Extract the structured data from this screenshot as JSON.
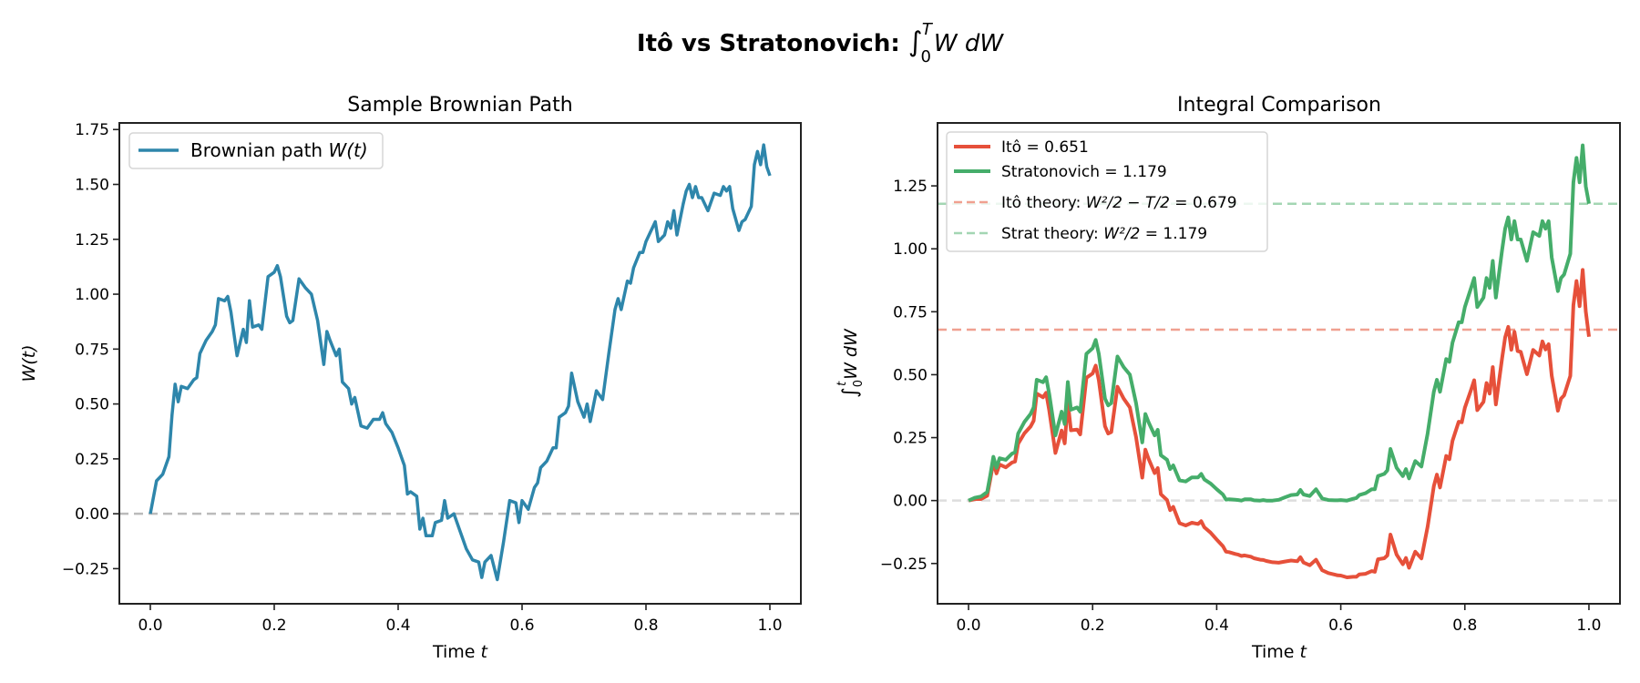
{
  "figure": {
    "suptitle": "Itô vs Stratonovich: ",
    "suptitle_math": "∫",
    "suptitle_upper": "T",
    "suptitle_lower": "0",
    "suptitle_integrand": "W dW"
  },
  "colors": {
    "brownian": "#2e86ab",
    "ito": "#e6503a",
    "strat": "#45ad6a",
    "ito_theory": "#f0a090",
    "strat_theory": "#a3d6b3",
    "zero_line": "#bbbbbb",
    "zero_line_right": "#dddddd"
  },
  "chart_data": [
    {
      "type": "line",
      "title": "Sample Brownian Path",
      "xlabel": "Time t",
      "xlabel_main": "Time ",
      "xlabel_var": "t",
      "ylabel": "W(t)",
      "xlim": [
        -0.05,
        1.05
      ],
      "ylim": [
        -0.41,
        1.78
      ],
      "xticks": [
        0.0,
        0.2,
        0.4,
        0.6,
        0.8,
        1.0
      ],
      "xtick_labels": [
        "0.0",
        "0.2",
        "0.4",
        "0.6",
        "0.8",
        "1.0"
      ],
      "yticks": [
        -0.25,
        0.0,
        0.25,
        0.5,
        0.75,
        1.0,
        1.25,
        1.5,
        1.75
      ],
      "ytick_labels": [
        "−0.25",
        "0.00",
        "0.25",
        "0.50",
        "0.75",
        "1.00",
        "1.25",
        "1.50",
        "1.75"
      ],
      "legend_placement": "upper-left",
      "hlines": [
        {
          "y": 0,
          "style": "dashed",
          "color_key": "zero_line"
        }
      ],
      "series": [
        {
          "name": "Brownian path W(t)",
          "legend_label": "Brownian path ",
          "legend_math": "W(t)",
          "color_key": "brownian",
          "x": [
            0,
            0.01,
            0.02,
            0.03,
            0.035,
            0.04,
            0.045,
            0.05,
            0.06,
            0.07,
            0.075,
            0.08,
            0.09,
            0.1,
            0.105,
            0.11,
            0.12,
            0.125,
            0.13,
            0.14,
            0.15,
            0.155,
            0.16,
            0.165,
            0.175,
            0.18,
            0.19,
            0.2,
            0.205,
            0.21,
            0.22,
            0.225,
            0.23,
            0.24,
            0.25,
            0.26,
            0.27,
            0.28,
            0.285,
            0.29,
            0.3,
            0.305,
            0.31,
            0.32,
            0.325,
            0.33,
            0.34,
            0.35,
            0.36,
            0.37,
            0.375,
            0.38,
            0.39,
            0.4,
            0.41,
            0.415,
            0.42,
            0.43,
            0.435,
            0.44,
            0.445,
            0.455,
            0.46,
            0.47,
            0.475,
            0.48,
            0.49,
            0.5,
            0.51,
            0.52,
            0.53,
            0.535,
            0.54,
            0.55,
            0.56,
            0.57,
            0.58,
            0.59,
            0.595,
            0.6,
            0.61,
            0.62,
            0.625,
            0.63,
            0.64,
            0.65,
            0.655,
            0.66,
            0.67,
            0.675,
            0.68,
            0.69,
            0.7,
            0.705,
            0.71,
            0.72,
            0.73,
            0.74,
            0.75,
            0.755,
            0.76,
            0.77,
            0.775,
            0.78,
            0.79,
            0.795,
            0.8,
            0.81,
            0.815,
            0.82,
            0.83,
            0.835,
            0.84,
            0.845,
            0.85,
            0.86,
            0.865,
            0.87,
            0.875,
            0.88,
            0.885,
            0.89,
            0.9,
            0.91,
            0.92,
            0.925,
            0.93,
            0.935,
            0.94,
            0.95,
            0.955,
            0.96,
            0.97,
            0.975,
            0.98,
            0.985,
            0.99,
            0.995,
            1.0
          ],
          "y": [
            0,
            0.15,
            0.18,
            0.26,
            0.45,
            0.59,
            0.51,
            0.58,
            0.57,
            0.61,
            0.62,
            0.73,
            0.79,
            0.83,
            0.86,
            0.98,
            0.97,
            0.99,
            0.92,
            0.72,
            0.84,
            0.78,
            0.97,
            0.85,
            0.86,
            0.84,
            1.08,
            1.1,
            1.13,
            1.08,
            0.9,
            0.87,
            0.88,
            1.07,
            1.03,
            1.0,
            0.88,
            0.68,
            0.83,
            0.79,
            0.72,
            0.75,
            0.6,
            0.57,
            0.5,
            0.53,
            0.4,
            0.39,
            0.43,
            0.43,
            0.46,
            0.41,
            0.37,
            0.3,
            0.22,
            0.09,
            0.1,
            0.08,
            -0.07,
            -0.02,
            -0.1,
            -0.1,
            -0.04,
            -0.03,
            0.06,
            -0.02,
            0,
            -0.08,
            -0.16,
            -0.21,
            -0.22,
            -0.29,
            -0.22,
            -0.19,
            -0.3,
            -0.13,
            0.06,
            0.05,
            -0.04,
            0.06,
            0.02,
            0.12,
            0.14,
            0.21,
            0.24,
            0.3,
            0.3,
            0.44,
            0.46,
            0.49,
            0.64,
            0.51,
            0.44,
            0.5,
            0.42,
            0.56,
            0.52,
            0.73,
            0.93,
            0.98,
            0.93,
            1.06,
            1.05,
            1.12,
            1.19,
            1.19,
            1.24,
            1.3,
            1.33,
            1.24,
            1.27,
            1.33,
            1.3,
            1.38,
            1.27,
            1.41,
            1.47,
            1.5,
            1.44,
            1.49,
            1.44,
            1.44,
            1.38,
            1.46,
            1.45,
            1.49,
            1.47,
            1.49,
            1.39,
            1.29,
            1.33,
            1.34,
            1.4,
            1.59,
            1.65,
            1.59,
            1.68,
            1.58,
            1.54
          ]
        }
      ]
    },
    {
      "type": "line",
      "title": "Integral Comparison",
      "xlabel": "Time t",
      "xlabel_main": "Time ",
      "xlabel_var": "t",
      "ylabel": "∫₀ᵗ W dW",
      "ylabel_int": "∫",
      "ylabel_upper": "t",
      "ylabel_lower": "0",
      "ylabel_integrand": "W dW",
      "xlim": [
        -0.05,
        1.05
      ],
      "ylim": [
        -0.41,
        1.5
      ],
      "xticks": [
        0.0,
        0.2,
        0.4,
        0.6,
        0.8,
        1.0
      ],
      "xtick_labels": [
        "0.0",
        "0.2",
        "0.4",
        "0.6",
        "0.8",
        "1.0"
      ],
      "yticks": [
        -0.25,
        0.0,
        0.25,
        0.5,
        0.75,
        1.0,
        1.25
      ],
      "ytick_labels": [
        "−0.25",
        "0.00",
        "0.25",
        "0.50",
        "0.75",
        "1.00",
        "1.25"
      ],
      "legend_placement": "upper-left",
      "hlines": [
        {
          "y": 0,
          "style": "dashed",
          "color_key": "zero_line_right"
        },
        {
          "y": 0.679,
          "style": "dashed",
          "color_key": "ito_theory"
        },
        {
          "y": 1.179,
          "style": "dashed",
          "color_key": "strat_theory"
        }
      ],
      "legend": [
        {
          "label": "Itô = 0.651",
          "style": "solid",
          "color_key": "ito"
        },
        {
          "label": "Stratonovich = 1.179",
          "style": "solid",
          "color_key": "strat"
        },
        {
          "label_pre": "Itô theory: ",
          "label_math": "W²/2 − T/2",
          "label_post": " = 0.679",
          "style": "dashed",
          "color_key": "ito_theory"
        },
        {
          "label_pre": "Strat theory: ",
          "label_math": "W²/2",
          "label_post": " = 1.179",
          "style": "dashed",
          "color_key": "strat_theory"
        }
      ],
      "series": [
        {
          "name": "Itô = 0.651",
          "color_key": "ito",
          "x": [
            0,
            0.01,
            0.02,
            0.03,
            0.035,
            0.04,
            0.045,
            0.05,
            0.06,
            0.07,
            0.075,
            0.08,
            0.09,
            0.1,
            0.105,
            0.11,
            0.12,
            0.125,
            0.13,
            0.14,
            0.15,
            0.155,
            0.16,
            0.165,
            0.175,
            0.18,
            0.19,
            0.2,
            0.205,
            0.21,
            0.22,
            0.225,
            0.23,
            0.24,
            0.25,
            0.26,
            0.27,
            0.28,
            0.285,
            0.29,
            0.3,
            0.305,
            0.31,
            0.32,
            0.325,
            0.33,
            0.34,
            0.35,
            0.36,
            0.37,
            0.375,
            0.38,
            0.39,
            0.4,
            0.41,
            0.415,
            0.42,
            0.43,
            0.435,
            0.44,
            0.445,
            0.455,
            0.46,
            0.47,
            0.475,
            0.48,
            0.49,
            0.5,
            0.51,
            0.52,
            0.53,
            0.535,
            0.54,
            0.55,
            0.56,
            0.57,
            0.58,
            0.59,
            0.595,
            0.6,
            0.61,
            0.62,
            0.625,
            0.63,
            0.64,
            0.65,
            0.655,
            0.66,
            0.67,
            0.675,
            0.68,
            0.69,
            0.7,
            0.705,
            0.71,
            0.72,
            0.73,
            0.74,
            0.75,
            0.755,
            0.76,
            0.77,
            0.775,
            0.78,
            0.79,
            0.795,
            0.8,
            0.81,
            0.815,
            0.82,
            0.83,
            0.835,
            0.84,
            0.845,
            0.85,
            0.86,
            0.865,
            0.87,
            0.875,
            0.88,
            0.885,
            0.89,
            0.9,
            0.91,
            0.92,
            0.925,
            0.93,
            0.935,
            0.94,
            0.95,
            0.955,
            0.96,
            0.97,
            0.975,
            0.98,
            0.985,
            0.99,
            0.995,
            1.0
          ],
          "y": [
            0,
            0.006,
            0.006,
            0.019,
            0.084,
            0.154,
            0.108,
            0.143,
            0.132,
            0.151,
            0.155,
            0.226,
            0.267,
            0.294,
            0.317,
            0.425,
            0.41,
            0.428,
            0.358,
            0.189,
            0.278,
            0.227,
            0.391,
            0.279,
            0.282,
            0.263,
            0.488,
            0.505,
            0.536,
            0.478,
            0.295,
            0.266,
            0.272,
            0.452,
            0.405,
            0.37,
            0.252,
            0.091,
            0.202,
            0.167,
            0.109,
            0.129,
            0.025,
            0.002,
            -0.038,
            -0.025,
            -0.09,
            -0.099,
            -0.088,
            -0.093,
            -0.082,
            -0.106,
            -0.127,
            -0.155,
            -0.181,
            -0.203,
            -0.205,
            -0.212,
            -0.215,
            -0.22,
            -0.218,
            -0.223,
            -0.229,
            -0.235,
            -0.236,
            -0.24,
            -0.245,
            -0.247,
            -0.242,
            -0.238,
            -0.241,
            -0.225,
            -0.246,
            -0.257,
            -0.235,
            -0.277,
            -0.288,
            -0.294,
            -0.297,
            -0.298,
            -0.305,
            -0.303,
            -0.303,
            -0.293,
            -0.291,
            -0.28,
            -0.283,
            -0.233,
            -0.229,
            -0.218,
            -0.135,
            -0.215,
            -0.253,
            -0.228,
            -0.267,
            -0.203,
            -0.23,
            -0.104,
            0.057,
            0.103,
            0.052,
            0.177,
            0.164,
            0.237,
            0.313,
            0.311,
            0.369,
            0.44,
            0.478,
            0.359,
            0.392,
            0.467,
            0.425,
            0.53,
            0.382,
            0.564,
            0.648,
            0.69,
            0.599,
            0.67,
            0.594,
            0.591,
            0.502,
            0.598,
            0.576,
            0.632,
            0.6,
            0.621,
            0.496,
            0.357,
            0.405,
            0.418,
            0.495,
            0.776,
            0.872,
            0.772,
            0.916,
            0.751,
            0.651
          ]
        },
        {
          "name": "Stratonovich = 1.179",
          "color_key": "strat",
          "x": [
            0,
            0.01,
            0.02,
            0.03,
            0.035,
            0.04,
            0.045,
            0.05,
            0.06,
            0.07,
            0.075,
            0.08,
            0.09,
            0.1,
            0.105,
            0.11,
            0.12,
            0.125,
            0.13,
            0.14,
            0.15,
            0.155,
            0.16,
            0.165,
            0.175,
            0.18,
            0.19,
            0.2,
            0.205,
            0.21,
            0.22,
            0.225,
            0.23,
            0.24,
            0.25,
            0.26,
            0.27,
            0.28,
            0.285,
            0.29,
            0.3,
            0.305,
            0.31,
            0.32,
            0.325,
            0.33,
            0.34,
            0.35,
            0.36,
            0.37,
            0.375,
            0.38,
            0.39,
            0.4,
            0.41,
            0.415,
            0.42,
            0.43,
            0.435,
            0.44,
            0.445,
            0.455,
            0.46,
            0.47,
            0.475,
            0.48,
            0.49,
            0.5,
            0.51,
            0.52,
            0.53,
            0.535,
            0.54,
            0.55,
            0.56,
            0.57,
            0.58,
            0.59,
            0.595,
            0.6,
            0.61,
            0.62,
            0.625,
            0.63,
            0.64,
            0.65,
            0.655,
            0.66,
            0.67,
            0.675,
            0.68,
            0.69,
            0.7,
            0.705,
            0.71,
            0.72,
            0.73,
            0.74,
            0.75,
            0.755,
            0.76,
            0.77,
            0.775,
            0.78,
            0.79,
            0.795,
            0.8,
            0.81,
            0.815,
            0.82,
            0.83,
            0.835,
            0.84,
            0.845,
            0.85,
            0.86,
            0.865,
            0.87,
            0.875,
            0.88,
            0.885,
            0.89,
            0.9,
            0.91,
            0.92,
            0.925,
            0.93,
            0.935,
            0.94,
            0.95,
            0.955,
            0.96,
            0.97,
            0.975,
            0.98,
            0.985,
            0.99,
            0.995,
            1.0
          ],
          "y": [
            0,
            0.011,
            0.016,
            0.034,
            0.101,
            0.174,
            0.13,
            0.168,
            0.162,
            0.186,
            0.192,
            0.266,
            0.312,
            0.344,
            0.37,
            0.48,
            0.47,
            0.49,
            0.423,
            0.259,
            0.353,
            0.304,
            0.471,
            0.361,
            0.37,
            0.353,
            0.583,
            0.605,
            0.638,
            0.583,
            0.405,
            0.378,
            0.387,
            0.572,
            0.53,
            0.5,
            0.387,
            0.231,
            0.344,
            0.312,
            0.259,
            0.281,
            0.18,
            0.162,
            0.125,
            0.14,
            0.08,
            0.076,
            0.092,
            0.092,
            0.106,
            0.084,
            0.068,
            0.045,
            0.024,
            0.004,
            0.005,
            0.003,
            0.002,
            0.0,
            0.005,
            0.005,
            0.001,
            0.0,
            0.002,
            0.0,
            0.0,
            0.003,
            0.013,
            0.022,
            0.024,
            0.042,
            0.024,
            0.018,
            0.045,
            0.008,
            0.002,
            0.001,
            0.001,
            0.002,
            0.0,
            0.007,
            0.01,
            0.022,
            0.029,
            0.045,
            0.045,
            0.097,
            0.106,
            0.12,
            0.205,
            0.13,
            0.097,
            0.125,
            0.088,
            0.157,
            0.135,
            0.266,
            0.432,
            0.48,
            0.432,
            0.562,
            0.551,
            0.627,
            0.708,
            0.708,
            0.769,
            0.845,
            0.884,
            0.769,
            0.806,
            0.884,
            0.845,
            0.952,
            0.806,
            0.994,
            1.08,
            1.125,
            1.037,
            1.11,
            1.037,
            1.037,
            0.952,
            1.066,
            1.051,
            1.11,
            1.08,
            1.11,
            0.966,
            0.832,
            0.884,
            0.898,
            0.98,
            1.264,
            1.361,
            1.264,
            1.411,
            1.248,
            1.179
          ]
        }
      ]
    }
  ]
}
